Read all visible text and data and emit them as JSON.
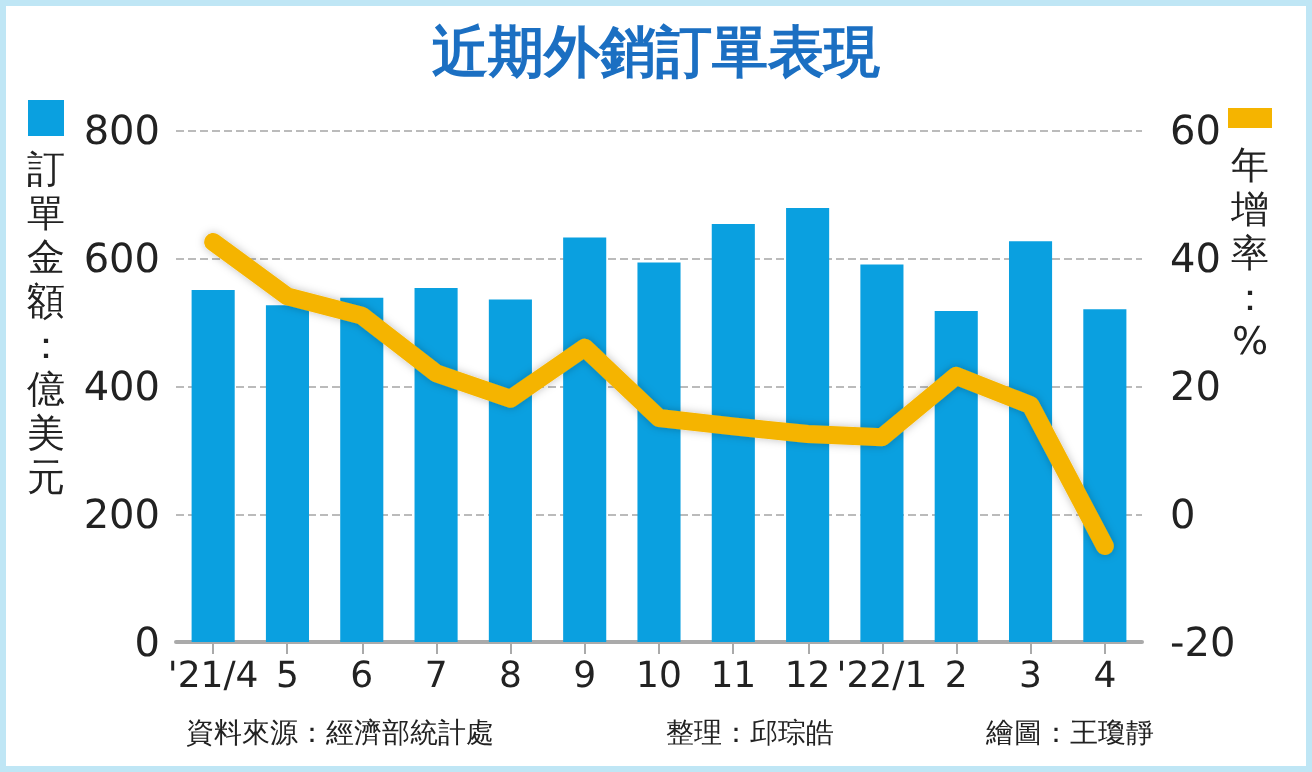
{
  "chart_data": {
    "type": "bar",
    "title": "近期外銷訂單表現",
    "categories": [
      "'21/4",
      "5",
      "6",
      "7",
      "8",
      "9",
      "10",
      "11",
      "12",
      "'22/1",
      "2",
      "3",
      "4"
    ],
    "series": [
      {
        "color": "#0aa0e0",
        "values": [
          550,
          526,
          538,
          553,
          535,
          632,
          593,
          653,
          678,
          590,
          517,
          626,
          520
        ]
      },
      {
        "type": "line",
        "axis": "y2",
        "color": "#f5b400",
        "values": [
          42.5,
          34,
          31,
          22,
          18,
          26,
          15,
          13.7,
          12.5,
          12,
          21.6,
          17,
          -5
        ]
      }
    ],
    "ylabel": "訂單金額：億美元",
    "y2label": "年增率：%",
    "ylim": [
      0,
      800
    ],
    "yticks": [
      0,
      200,
      400,
      600,
      800
    ],
    "y2lim": [
      -20,
      60
    ],
    "y2ticks": [
      -20,
      0,
      20,
      40,
      60
    ],
    "grid": "y",
    "marker": "none",
    "line_style": "solid",
    "annotations": [
      "資料來源：經濟部統計處",
      "整理：邱琮皓",
      "繪圖：王瓊靜"
    ]
  }
}
